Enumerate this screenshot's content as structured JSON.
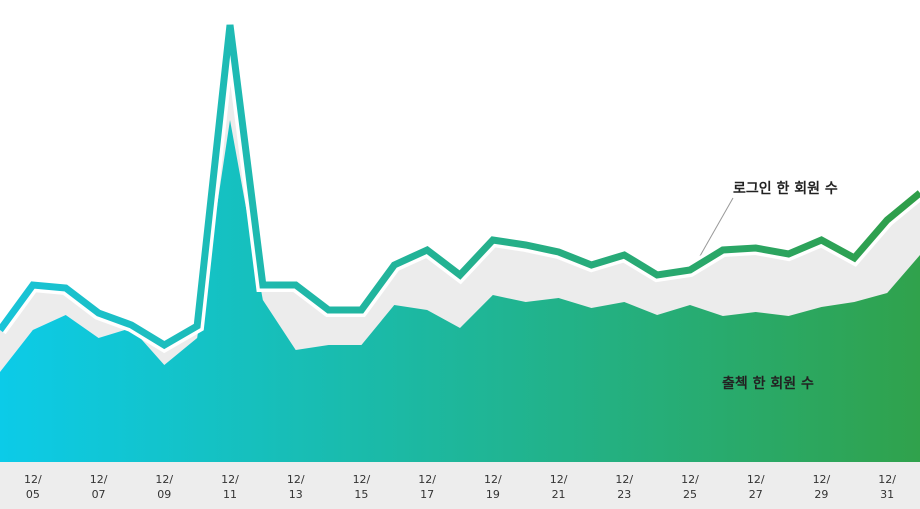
{
  "chart_data": {
    "type": "line-area",
    "categories": [
      null,
      "12/\n05",
      null,
      "12/\n07",
      null,
      "12/\n09",
      null,
      "12/\n11",
      null,
      "12/\n13",
      null,
      "12/\n15",
      null,
      "12/\n17",
      null,
      "12/\n19",
      null,
      "12/\n21",
      null,
      "12/\n23",
      null,
      "12/\n25",
      null,
      "12/\n27",
      null,
      "12/\n29",
      null,
      "12/\n31",
      null
    ],
    "series": [
      {
        "name": "로그인 한 회원 수",
        "kind": "line",
        "color": "#22b89a",
        "values": [
          130,
          175,
          172,
          147,
          135,
          115,
          134,
          435,
          175,
          175,
          150,
          150,
          195,
          210,
          185,
          220,
          215,
          208,
          195,
          205,
          185,
          190,
          210,
          212,
          206,
          220,
          202,
          240,
          267
        ]
      },
      {
        "name": "출첵 한 회원 수",
        "kind": "area",
        "color": "#1fb8a0",
        "values": [
          88,
          130,
          145,
          122,
          132,
          95,
          122,
          340,
          160,
          110,
          115,
          115,
          155,
          150,
          132,
          165,
          158,
          162,
          152,
          158,
          145,
          155,
          144,
          148,
          144,
          153,
          158,
          167,
          205
        ]
      }
    ],
    "ylim": [
      0,
      460
    ]
  }
}
